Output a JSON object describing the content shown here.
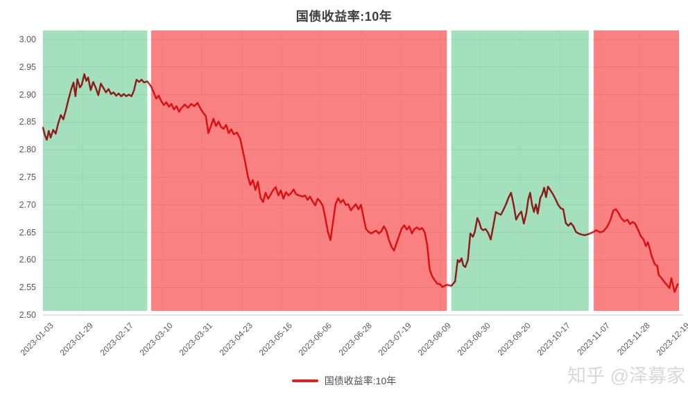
{
  "title": "国债收益率:10年",
  "watermark": "知乎 @泽募家",
  "legend": {
    "label": "国债收益率:10年",
    "line_color": "#e02020"
  },
  "colors": {
    "band_green": "#a4e0bd",
    "band_red": "#fa8181",
    "line_red": "#e02020",
    "grid_line": "rgba(60,60,60,0.10)",
    "grid_line_vertical": "rgba(60,60,60,0.05)",
    "axis_line": "#d4d4d4",
    "title_text": "#3e3e3e",
    "axis_text": "#595959",
    "watermark_text": "#d8d8d8"
  },
  "chart_data": {
    "type": "line",
    "title": "国债收益率:10年",
    "xlabel": "",
    "ylabel": "",
    "ylim": [
      2.5,
      3.0
    ],
    "y_tick_labels": [
      "3.00",
      "2.95",
      "2.90",
      "2.85",
      "2.80",
      "2.75",
      "2.70",
      "2.65",
      "2.60",
      "2.55",
      "2.50"
    ],
    "x_tick_labels": [
      "2023-01-03",
      "2023-01-29",
      "2023-02-17",
      "2023-03-10",
      "2023-03-31",
      "2023-04-23",
      "2023-05-16",
      "2023-06-06",
      "2023-06-28",
      "2023-07-19",
      "2023-08-09",
      "2023-08-30",
      "2023-09-20",
      "2023-10-17",
      "2023-11-07",
      "2023-11-28",
      "2023-12-19"
    ],
    "grid": true,
    "legend_position": "bottom",
    "band_colors": {
      "green": "#a4e0bd",
      "red": "#fa8181"
    },
    "bands": [
      {
        "color_key": "green",
        "from": 0.0,
        "to": 0.164
      },
      {
        "color_key": "red",
        "from": 0.17,
        "to": 0.635
      },
      {
        "color_key": "green",
        "from": 0.642,
        "to": 0.858
      },
      {
        "color_key": "red",
        "from": 0.866,
        "to": 1.0
      }
    ],
    "series": [
      {
        "name": "国债收益率:10年",
        "color": "#e02020",
        "points": [
          [
            0.0,
            2.84
          ],
          [
            0.003,
            2.826
          ],
          [
            0.006,
            2.818
          ],
          [
            0.009,
            2.834
          ],
          [
            0.012,
            2.822
          ],
          [
            0.016,
            2.836
          ],
          [
            0.02,
            2.829
          ],
          [
            0.024,
            2.848
          ],
          [
            0.028,
            2.863
          ],
          [
            0.032,
            2.855
          ],
          [
            0.036,
            2.872
          ],
          [
            0.04,
            2.891
          ],
          [
            0.044,
            2.908
          ],
          [
            0.048,
            2.922
          ],
          [
            0.051,
            2.897
          ],
          [
            0.054,
            2.928
          ],
          [
            0.058,
            2.913
          ],
          [
            0.061,
            2.918
          ],
          [
            0.065,
            2.937
          ],
          [
            0.068,
            2.925
          ],
          [
            0.071,
            2.931
          ],
          [
            0.075,
            2.908
          ],
          [
            0.079,
            2.923
          ],
          [
            0.083,
            2.912
          ],
          [
            0.087,
            2.899
          ],
          [
            0.091,
            2.92
          ],
          [
            0.095,
            2.912
          ],
          [
            0.099,
            2.904
          ],
          [
            0.103,
            2.91
          ],
          [
            0.107,
            2.901
          ],
          [
            0.111,
            2.904
          ],
          [
            0.115,
            2.898
          ],
          [
            0.119,
            2.902
          ],
          [
            0.123,
            2.897
          ],
          [
            0.127,
            2.901
          ],
          [
            0.131,
            2.897
          ],
          [
            0.135,
            2.9
          ],
          [
            0.139,
            2.897
          ],
          [
            0.143,
            2.907
          ],
          [
            0.147,
            2.927
          ],
          [
            0.151,
            2.923
          ],
          [
            0.155,
            2.927
          ],
          [
            0.159,
            2.922
          ],
          [
            0.164,
            2.924
          ],
          [
            0.17,
            2.915
          ],
          [
            0.174,
            2.904
          ],
          [
            0.178,
            2.893
          ],
          [
            0.182,
            2.898
          ],
          [
            0.186,
            2.888
          ],
          [
            0.19,
            2.881
          ],
          [
            0.194,
            2.886
          ],
          [
            0.198,
            2.878
          ],
          [
            0.202,
            2.883
          ],
          [
            0.206,
            2.873
          ],
          [
            0.21,
            2.879
          ],
          [
            0.214,
            2.869
          ],
          [
            0.218,
            2.876
          ],
          [
            0.223,
            2.882
          ],
          [
            0.228,
            2.876
          ],
          [
            0.233,
            2.883
          ],
          [
            0.238,
            2.879
          ],
          [
            0.243,
            2.885
          ],
          [
            0.248,
            2.874
          ],
          [
            0.252,
            2.867
          ],
          [
            0.256,
            2.861
          ],
          [
            0.26,
            2.83
          ],
          [
            0.264,
            2.843
          ],
          [
            0.268,
            2.856
          ],
          [
            0.272,
            2.843
          ],
          [
            0.276,
            2.851
          ],
          [
            0.28,
            2.841
          ],
          [
            0.284,
            2.838
          ],
          [
            0.288,
            2.845
          ],
          [
            0.292,
            2.83
          ],
          [
            0.296,
            2.837
          ],
          [
            0.3,
            2.828
          ],
          [
            0.305,
            2.831
          ],
          [
            0.31,
            2.82
          ],
          [
            0.314,
            2.799
          ],
          [
            0.318,
            2.777
          ],
          [
            0.322,
            2.752
          ],
          [
            0.326,
            2.736
          ],
          [
            0.33,
            2.745
          ],
          [
            0.334,
            2.727
          ],
          [
            0.338,
            2.742
          ],
          [
            0.342,
            2.713
          ],
          [
            0.346,
            2.705
          ],
          [
            0.35,
            2.722
          ],
          [
            0.354,
            2.711
          ],
          [
            0.358,
            2.719
          ],
          [
            0.362,
            2.727
          ],
          [
            0.366,
            2.732
          ],
          [
            0.37,
            2.717
          ],
          [
            0.374,
            2.726
          ],
          [
            0.378,
            2.711
          ],
          [
            0.382,
            2.723
          ],
          [
            0.386,
            2.717
          ],
          [
            0.39,
            2.721
          ],
          [
            0.394,
            2.728
          ],
          [
            0.398,
            2.719
          ],
          [
            0.403,
            2.717
          ],
          [
            0.408,
            2.715
          ],
          [
            0.412,
            2.717
          ],
          [
            0.416,
            2.709
          ],
          [
            0.42,
            2.715
          ],
          [
            0.424,
            2.706
          ],
          [
            0.428,
            2.699
          ],
          [
            0.432,
            2.711
          ],
          [
            0.436,
            2.706
          ],
          [
            0.44,
            2.698
          ],
          [
            0.444,
            2.676
          ],
          [
            0.448,
            2.651
          ],
          [
            0.452,
            2.636
          ],
          [
            0.456,
            2.669
          ],
          [
            0.46,
            2.701
          ],
          [
            0.464,
            2.712
          ],
          [
            0.468,
            2.704
          ],
          [
            0.472,
            2.709
          ],
          [
            0.476,
            2.7
          ],
          [
            0.48,
            2.701
          ],
          [
            0.484,
            2.69
          ],
          [
            0.488,
            2.696
          ],
          [
            0.492,
            2.701
          ],
          [
            0.496,
            2.692
          ],
          [
            0.5,
            2.7
          ],
          [
            0.504,
            2.677
          ],
          [
            0.508,
            2.656
          ],
          [
            0.512,
            2.651
          ],
          [
            0.516,
            2.648
          ],
          [
            0.52,
            2.651
          ],
          [
            0.524,
            2.653
          ],
          [
            0.528,
            2.648
          ],
          [
            0.532,
            2.652
          ],
          [
            0.536,
            2.661
          ],
          [
            0.54,
            2.653
          ],
          [
            0.544,
            2.636
          ],
          [
            0.548,
            2.624
          ],
          [
            0.552,
            2.617
          ],
          [
            0.556,
            2.631
          ],
          [
            0.56,
            2.644
          ],
          [
            0.564,
            2.657
          ],
          [
            0.568,
            2.663
          ],
          [
            0.572,
            2.655
          ],
          [
            0.576,
            2.661
          ],
          [
            0.58,
            2.648
          ],
          [
            0.584,
            2.656
          ],
          [
            0.588,
            2.659
          ],
          [
            0.592,
            2.655
          ],
          [
            0.596,
            2.658
          ],
          [
            0.6,
            2.651
          ],
          [
            0.604,
            2.628
          ],
          [
            0.608,
            2.583
          ],
          [
            0.612,
            2.57
          ],
          [
            0.616,
            2.563
          ],
          [
            0.62,
            2.557
          ],
          [
            0.624,
            2.556
          ],
          [
            0.628,
            2.551
          ],
          [
            0.635,
            2.555
          ],
          [
            0.642,
            2.553
          ],
          [
            0.645,
            2.557
          ],
          [
            0.648,
            2.561
          ],
          [
            0.652,
            2.6
          ],
          [
            0.655,
            2.596
          ],
          [
            0.658,
            2.603
          ],
          [
            0.661,
            2.59
          ],
          [
            0.664,
            2.587
          ],
          [
            0.668,
            2.6
          ],
          [
            0.672,
            2.648
          ],
          [
            0.676,
            2.642
          ],
          [
            0.679,
            2.651
          ],
          [
            0.683,
            2.676
          ],
          [
            0.686,
            2.668
          ],
          [
            0.689,
            2.657
          ],
          [
            0.692,
            2.654
          ],
          [
            0.696,
            2.656
          ],
          [
            0.7,
            2.649
          ],
          [
            0.704,
            2.637
          ],
          [
            0.708,
            2.661
          ],
          [
            0.712,
            2.687
          ],
          [
            0.716,
            2.684
          ],
          [
            0.72,
            2.682
          ],
          [
            0.724,
            2.691
          ],
          [
            0.728,
            2.701
          ],
          [
            0.732,
            2.713
          ],
          [
            0.736,
            2.722
          ],
          [
            0.74,
            2.7
          ],
          [
            0.744,
            2.673
          ],
          [
            0.748,
            2.682
          ],
          [
            0.752,
            2.688
          ],
          [
            0.756,
            2.666
          ],
          [
            0.76,
            2.685
          ],
          [
            0.763,
            2.71
          ],
          [
            0.766,
            2.722
          ],
          [
            0.769,
            2.7
          ],
          [
            0.772,
            2.687
          ],
          [
            0.775,
            2.701
          ],
          [
            0.778,
            2.684
          ],
          [
            0.782,
            2.713
          ],
          [
            0.785,
            2.719
          ],
          [
            0.788,
            2.731
          ],
          [
            0.791,
            2.714
          ],
          [
            0.794,
            2.733
          ],
          [
            0.798,
            2.726
          ],
          [
            0.802,
            2.719
          ],
          [
            0.806,
            2.71
          ],
          [
            0.81,
            2.7
          ],
          [
            0.814,
            2.694
          ],
          [
            0.818,
            2.692
          ],
          [
            0.822,
            2.667
          ],
          [
            0.826,
            2.662
          ],
          [
            0.83,
            2.667
          ],
          [
            0.834,
            2.661
          ],
          [
            0.838,
            2.651
          ],
          [
            0.842,
            2.648
          ],
          [
            0.847,
            2.646
          ],
          [
            0.852,
            2.645
          ],
          [
            0.858,
            2.647
          ],
          [
            0.866,
            2.651
          ],
          [
            0.87,
            2.654
          ],
          [
            0.876,
            2.65
          ],
          [
            0.881,
            2.652
          ],
          [
            0.887,
            2.66
          ],
          [
            0.892,
            2.672
          ],
          [
            0.897,
            2.69
          ],
          [
            0.901,
            2.692
          ],
          [
            0.905,
            2.685
          ],
          [
            0.909,
            2.676
          ],
          [
            0.914,
            2.67
          ],
          [
            0.919,
            2.673
          ],
          [
            0.923,
            2.665
          ],
          [
            0.927,
            2.669
          ],
          [
            0.931,
            2.666
          ],
          [
            0.936,
            2.654
          ],
          [
            0.94,
            2.643
          ],
          [
            0.944,
            2.638
          ],
          [
            0.948,
            2.625
          ],
          [
            0.951,
            2.632
          ],
          [
            0.954,
            2.621
          ],
          [
            0.957,
            2.607
          ],
          [
            0.962,
            2.592
          ],
          [
            0.966,
            2.589
          ],
          [
            0.968,
            2.573
          ],
          [
            0.972,
            2.568
          ],
          [
            0.977,
            2.56
          ],
          [
            0.983,
            2.552
          ],
          [
            0.985,
            2.549
          ],
          [
            0.988,
            2.567
          ],
          [
            0.993,
            2.542
          ],
          [
            0.998,
            2.556
          ]
        ]
      }
    ]
  }
}
